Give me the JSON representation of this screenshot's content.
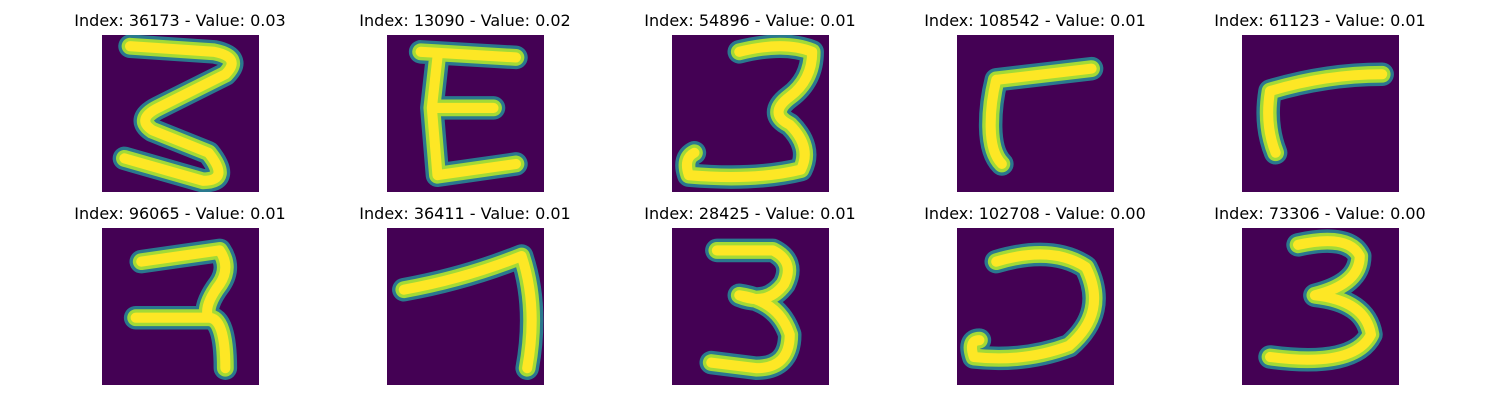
{
  "colors": {
    "background": "#440154",
    "stroke_inner": "#fde725",
    "stroke_mid": "#a2da37",
    "stroke_edge": "#2a788e"
  },
  "panels": [
    {
      "title": "Index: 36173 - Value: 0.03",
      "glyph": "3"
    },
    {
      "title": "Index: 13090 - Value: 0.02",
      "glyph": "E"
    },
    {
      "title": "Index: 54896 - Value: 0.01",
      "glyph": "3"
    },
    {
      "title": "Index: 108542 - Value: 0.01",
      "glyph": "7"
    },
    {
      "title": "Index: 61123 - Value: 0.01",
      "glyph": "7"
    },
    {
      "title": "Index: 96065 - Value: 0.01",
      "glyph": "7"
    },
    {
      "title": "Index: 36411 - Value: 0.01",
      "glyph": "7"
    },
    {
      "title": "Index: 28425 - Value: 0.01",
      "glyph": "3"
    },
    {
      "title": "Index: 102708 - Value: 0.00",
      "glyph": "3"
    },
    {
      "title": "Index: 73306 - Value: 0.00",
      "glyph": "3"
    }
  ]
}
